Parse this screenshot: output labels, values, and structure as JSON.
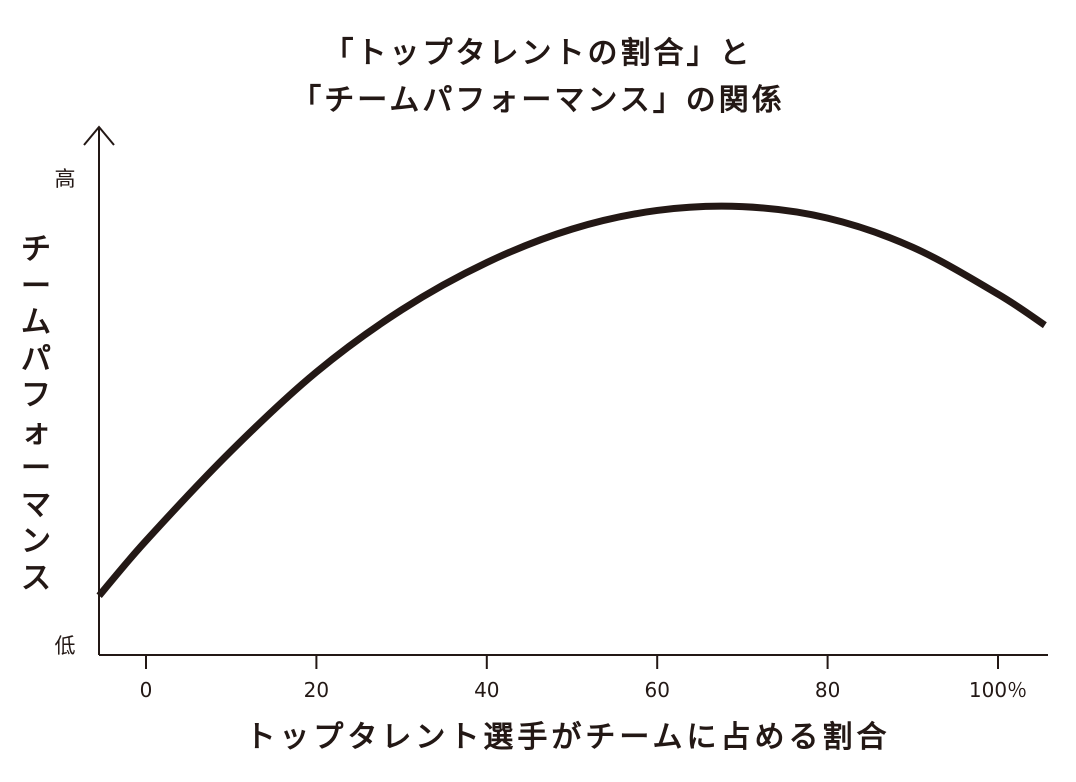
{
  "chart_data": {
    "type": "line",
    "title_lines": [
      "「トップタレントの割合」と",
      "「チームパフォーマンス」の関係"
    ],
    "ylabel": "チームパフォーマンス",
    "xlabel": "トップタレント選手がチームに占める割合",
    "y_high_label": "高",
    "y_low_label": "低",
    "x_ticks": [
      {
        "value": 0,
        "label": "0"
      },
      {
        "value": 20,
        "label": "20"
      },
      {
        "value": 40,
        "label": "40"
      },
      {
        "value": 60,
        "label": "60"
      },
      {
        "value": 80,
        "label": "80"
      },
      {
        "value": 100,
        "label": "100％"
      }
    ],
    "xlim": [
      -5.5,
      105.5
    ],
    "ylim": [
      0,
      1
    ],
    "grid": false,
    "series": [
      {
        "x": [
          -5.5,
          0,
          10,
          20,
          30,
          40,
          50,
          60,
          70,
          80,
          90,
          100,
          105.5
        ],
        "y": [
          0.124,
          0.239,
          0.427,
          0.592,
          0.722,
          0.821,
          0.891,
          0.93,
          0.938,
          0.914,
          0.853,
          0.755,
          0.69
        ],
        "color": "#231815"
      }
    ]
  }
}
